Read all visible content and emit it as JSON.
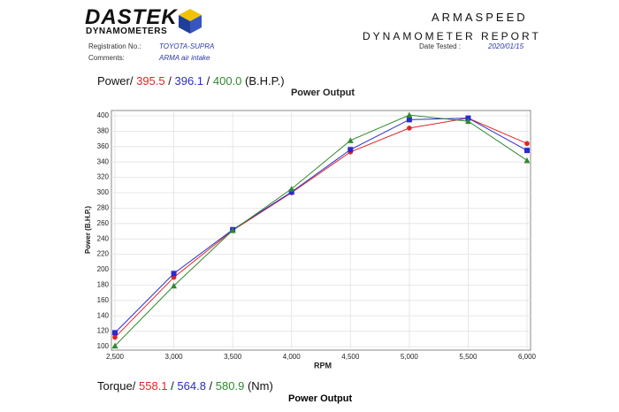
{
  "header": {
    "logo": "DASTEK",
    "logo_sub": "DYNAMOMETERS",
    "registration_label": "Registration No.:",
    "registration": "TOYOTA-SUPRA",
    "comments_label": "Comments:",
    "comments": "ARMA air intake",
    "company": "ARMASPEED",
    "report_title": "DYNAMOMETER REPORT",
    "date_label": "Date Tested :",
    "date": "2020/01/15"
  },
  "summary": {
    "power_label": "Power/",
    "power_values": [
      "395.5",
      "396.1",
      "400.0"
    ],
    "power_unit": "(B.H.P.)",
    "torque_label": "Torque/",
    "torque_values": [
      "558.1",
      "564.8",
      "580.9"
    ],
    "torque_unit": "(Nm)",
    "next_chart_title": "Power Output"
  },
  "chart_data": {
    "type": "line",
    "title": "Power Output",
    "x_label": "RPM",
    "y_label": "Power (B.H.P.)",
    "x": [
      2500,
      3000,
      3500,
      4000,
      4500,
      5000,
      5500,
      6000
    ],
    "series": [
      {
        "color": "#e02525",
        "marker": "circle",
        "values": [
          112,
          190,
          251,
          300,
          353,
          384,
          397,
          364
        ]
      },
      {
        "color": "#2a2ad0",
        "marker": "square",
        "values": [
          118,
          195,
          252,
          301,
          356,
          395,
          397,
          355
        ]
      },
      {
        "color": "#2f8a2f",
        "marker": "triangle",
        "values": [
          101,
          179,
          251,
          305,
          368,
          401,
          393,
          342
        ]
      }
    ],
    "xlim": [
      2500,
      6000
    ],
    "xticks": [
      {
        "value": 2500,
        "label": "2,500"
      },
      {
        "value": 3000,
        "label": "3,000"
      },
      {
        "value": 3500,
        "label": "3,500"
      },
      {
        "value": 4000,
        "label": "4,000"
      },
      {
        "value": 4500,
        "label": "4,500"
      },
      {
        "value": 5000,
        "label": "5,000"
      },
      {
        "value": 5500,
        "label": "5,500"
      },
      {
        "value": 6000,
        "label": "6,000"
      }
    ],
    "ylim": [
      100,
      400
    ],
    "yticks": [
      100,
      120,
      140,
      160,
      180,
      200,
      220,
      240,
      260,
      280,
      300,
      320,
      340,
      360,
      380,
      400
    ],
    "grid": true
  }
}
